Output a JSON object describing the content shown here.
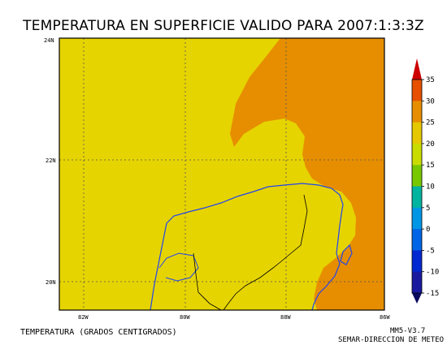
{
  "title": "TEMPERATURA EN SUPERFICIE VALIDO PARA 2007:1:3:3Z",
  "map": {
    "lat_labels": [
      "24N",
      "22N",
      "20N"
    ],
    "lon_labels": [
      "82W",
      "80W",
      "88W",
      "86W"
    ],
    "fill_colors": {
      "band_20_25": "#e6d400",
      "band_25_30": "#e68e00",
      "coastline": "#2244ee",
      "border": "#000000",
      "grid": "#555555"
    }
  },
  "colorbar": {
    "labels": [
      "35",
      "30",
      "25",
      "20",
      "15",
      "10",
      "5",
      "0",
      "-5",
      "-10",
      "-15"
    ],
    "colors": [
      "#cc0000",
      "#e65000",
      "#e68e00",
      "#e6c800",
      "#c8dc00",
      "#78c800",
      "#00b4a0",
      "#0096e6",
      "#0064e6",
      "#0028d0",
      "#1a1aa0",
      "#0a0a60"
    ]
  },
  "footer": {
    "left": "TEMPERATURA (GRADOS CENTIGRADOS)",
    "right_line1": "MM5-V3.7",
    "right_line2": "SEMAR-DIRECCION DE METEO"
  }
}
